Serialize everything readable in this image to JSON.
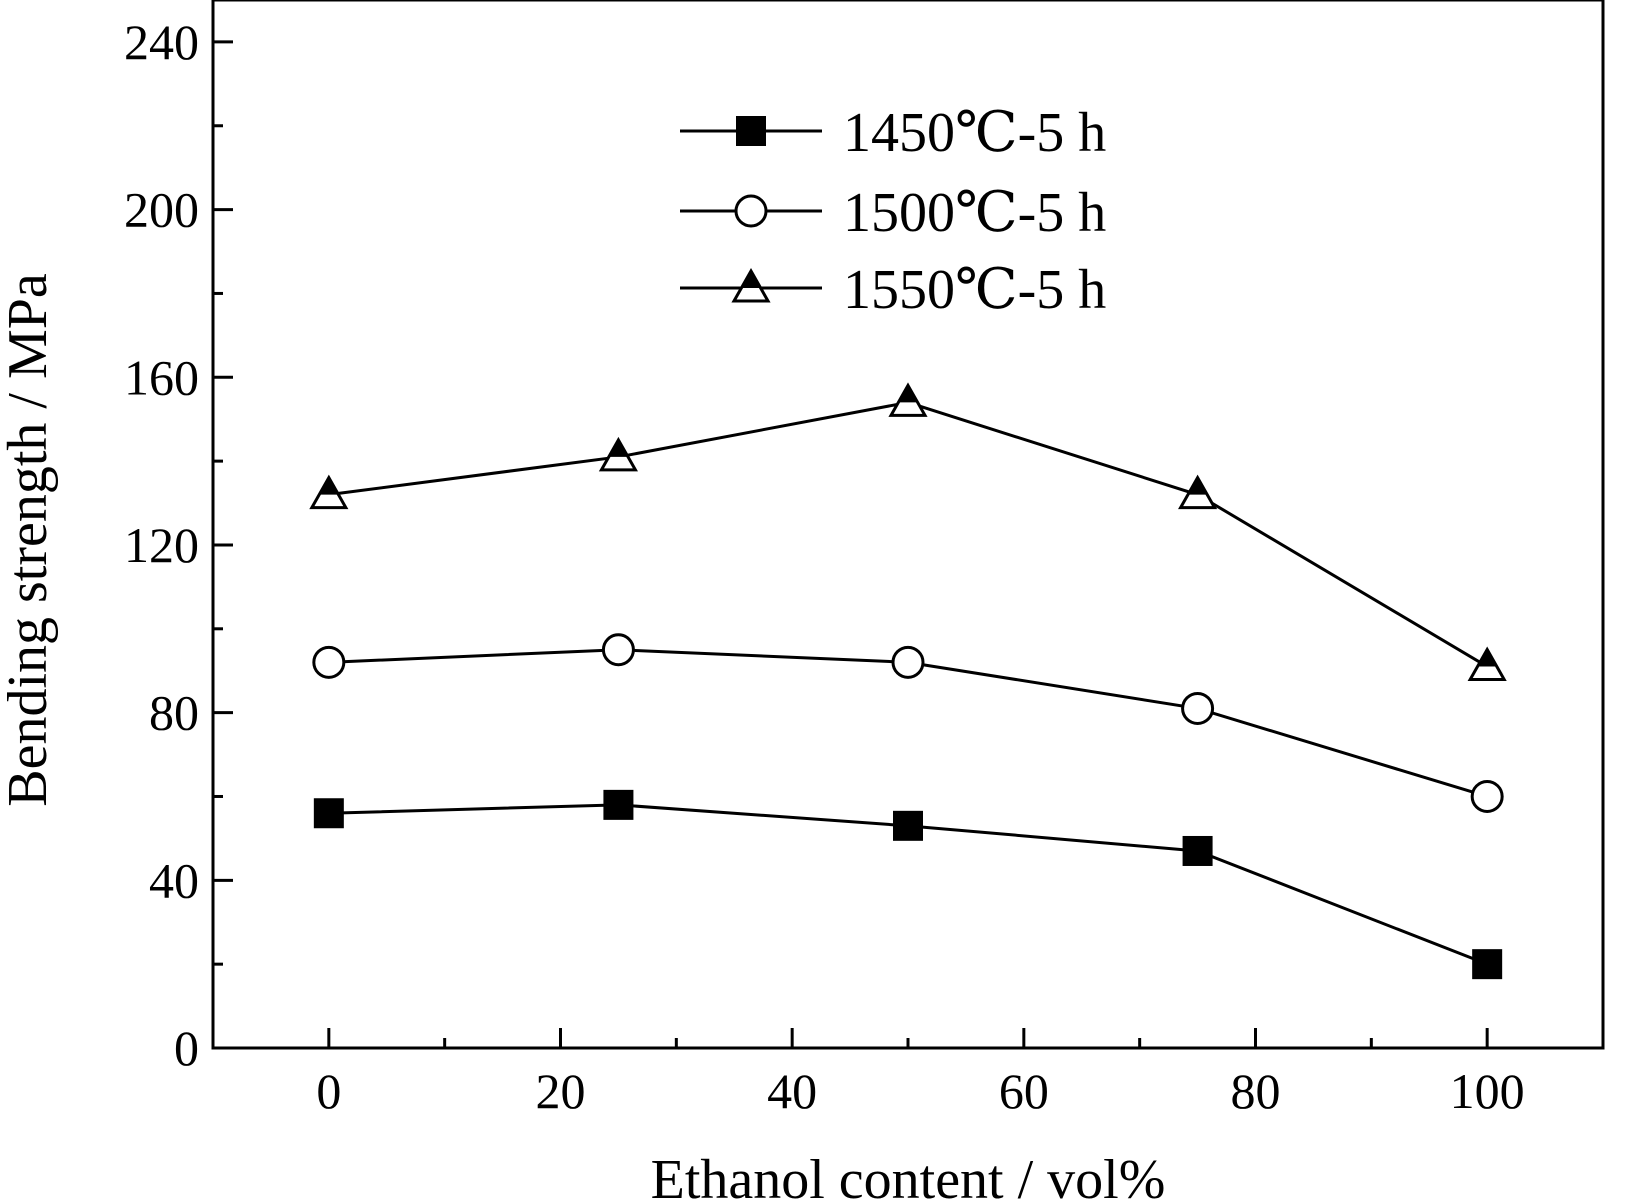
{
  "chart_data": {
    "type": "line",
    "xlabel": "Ethanol content / vol%",
    "ylabel": "Bending strength / MPa",
    "xlim": [
      -10,
      110
    ],
    "ylim": [
      0,
      250
    ],
    "x_ticks": [
      0,
      20,
      40,
      60,
      80,
      100
    ],
    "x_minor_ticks": [
      10,
      30,
      50,
      70,
      90
    ],
    "y_ticks": [
      0,
      40,
      80,
      120,
      160,
      200,
      240
    ],
    "y_minor_ticks": [
      20,
      60,
      100,
      140,
      180,
      220
    ],
    "grid": false,
    "legend_position": "top-center",
    "x": [
      0,
      25,
      50,
      75,
      100
    ],
    "series": [
      {
        "name": "1450℃-5 h",
        "marker": "filled-square",
        "values": [
          56,
          58,
          53,
          47,
          20
        ]
      },
      {
        "name": "1500℃-5 h",
        "marker": "open-circle",
        "values": [
          92,
          95,
          92,
          81,
          60
        ]
      },
      {
        "name": "1550℃-5 h",
        "marker": "half-filled-triangle",
        "values": [
          132,
          141,
          154,
          132,
          91
        ]
      }
    ]
  }
}
